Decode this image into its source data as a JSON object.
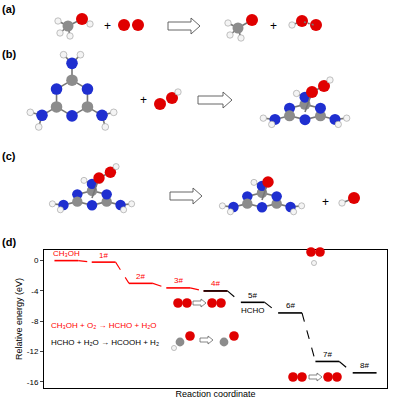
{
  "figure": {
    "panels": [
      {
        "label": "(a)",
        "signs": [
          "+",
          "+"
        ]
      },
      {
        "label": "(b)",
        "signs": [
          "+"
        ]
      },
      {
        "label": "(c)",
        "signs": [
          "+"
        ]
      }
    ]
  },
  "chart_data": {
    "label": "(d)",
    "type": "line",
    "x_label": "Reaction coordinate",
    "y_label": "Relative energy (eV)",
    "ylim": [
      -16.8,
      1.4
    ],
    "yticks": [
      -16,
      -12,
      -8,
      -4,
      0
    ],
    "tick_labels": "y",
    "categories": [
      "CH₃OH",
      "1#",
      "2#",
      "3#",
      "4#",
      "5#",
      "6#",
      "7#",
      "8#"
    ],
    "series": [
      {
        "name": "CH₃OH + O₂ → HCHO + H₂O",
        "color": "#ff0000",
        "line_style": "dashed",
        "values": [
          0,
          -0.2,
          -3.0,
          -3.6,
          -4.0,
          null,
          null,
          null,
          null
        ]
      },
      {
        "name": "HCHO + H₂O → HCOOH + H₂",
        "color": "#000000",
        "line_style": "dashed",
        "values": [
          null,
          null,
          null,
          null,
          -4.0,
          -5.5,
          -6.9,
          -13.3,
          -14.8
        ]
      }
    ],
    "annotations": [
      {
        "text": "HCHO",
        "category": "5#"
      }
    ]
  }
}
